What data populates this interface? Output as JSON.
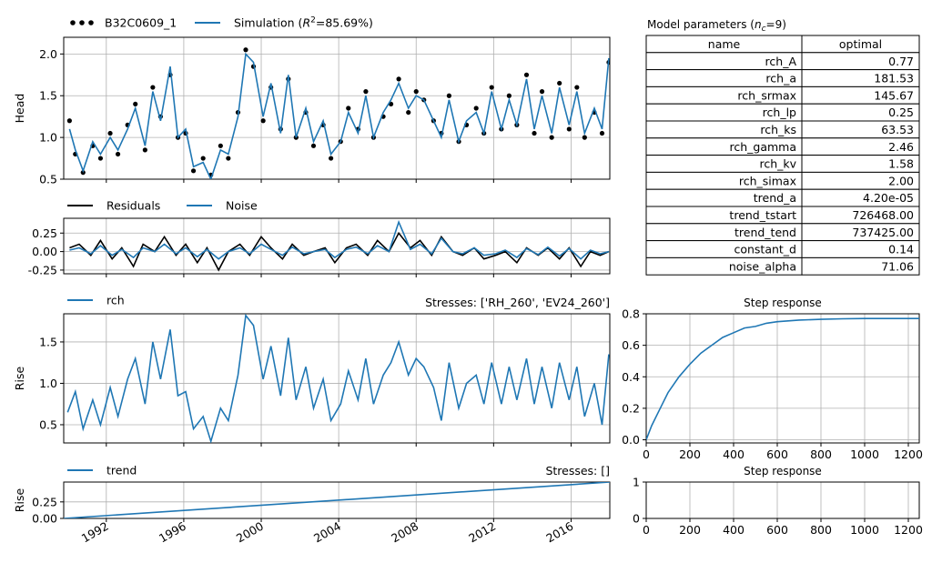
{
  "chart_data": [
    {
      "id": "head",
      "type": "line",
      "ylabel": "Head",
      "ylim": [
        0.5,
        2.2
      ],
      "yticks": [
        "0.5",
        "1.0",
        "1.5",
        "2.0"
      ],
      "xlim": [
        1989.8,
        2018.0
      ],
      "grid": true,
      "legend": "top-left",
      "legend_entries": [
        {
          "label": "B32C0609_1",
          "style": "dots",
          "color": "#000000"
        },
        {
          "label_prefix": "Simulation (",
          "label_r": "R",
          "label_sup": "2",
          "label_suffix": "=85.69%)",
          "style": "line",
          "color": "#1f77b4"
        }
      ],
      "series": [
        {
          "name": "B32C0609_1",
          "marker": "dot",
          "color": "#000000",
          "x": [
            1990.1,
            1990.4,
            1990.8,
            1991.3,
            1991.7,
            1992.2,
            1992.6,
            1993.1,
            1993.5,
            1994.0,
            1994.4,
            1994.8,
            1995.3,
            1995.7,
            1996.1,
            1996.5,
            1997.0,
            1997.4,
            1997.9,
            1998.3,
            1998.8,
            1999.2,
            1999.6,
            2000.1,
            2000.5,
            2001.0,
            2001.4,
            2001.8,
            2002.3,
            2002.7,
            2003.2,
            2003.6,
            2004.1,
            2004.5,
            2005.0,
            2005.4,
            2005.8,
            2006.3,
            2006.7,
            2007.1,
            2007.6,
            2008.0,
            2008.4,
            2008.9,
            2009.3,
            2009.7,
            2010.2,
            2010.6,
            2011.1,
            2011.5,
            2011.9,
            2012.4,
            2012.8,
            2013.2,
            2013.7,
            2014.1,
            2014.5,
            2015.0,
            2015.4,
            2015.9,
            2016.3,
            2016.7,
            2017.2,
            2017.6,
            2017.95
          ],
          "values": [
            1.2,
            0.8,
            0.58,
            0.9,
            0.75,
            1.05,
            0.8,
            1.15,
            1.4,
            0.85,
            1.6,
            1.25,
            1.75,
            1.0,
            1.05,
            0.6,
            0.75,
            0.55,
            0.9,
            0.75,
            1.3,
            2.05,
            1.85,
            1.2,
            1.6,
            1.1,
            1.7,
            1.0,
            1.3,
            0.9,
            1.15,
            0.75,
            0.95,
            1.35,
            1.1,
            1.55,
            1.0,
            1.25,
            1.4,
            1.7,
            1.3,
            1.55,
            1.45,
            1.2,
            1.05,
            1.5,
            0.95,
            1.15,
            1.35,
            1.05,
            1.6,
            1.1,
            1.5,
            1.15,
            1.75,
            1.05,
            1.55,
            1.0,
            1.65,
            1.1,
            1.6,
            1.0,
            1.3,
            1.05,
            1.9
          ]
        },
        {
          "name": "Simulation",
          "color": "#1f77b4",
          "x": [
            1990.1,
            1990.4,
            1990.8,
            1991.3,
            1991.7,
            1992.2,
            1992.6,
            1993.1,
            1993.5,
            1994.0,
            1994.4,
            1994.8,
            1995.3,
            1995.7,
            1996.1,
            1996.5,
            1997.0,
            1997.4,
            1997.9,
            1998.3,
            1998.8,
            1999.2,
            1999.6,
            2000.1,
            2000.5,
            2001.0,
            2001.4,
            2001.8,
            2002.3,
            2002.7,
            2003.2,
            2003.6,
            2004.1,
            2004.5,
            2005.0,
            2005.4,
            2005.8,
            2006.3,
            2006.7,
            2007.1,
            2007.6,
            2008.0,
            2008.4,
            2008.9,
            2009.3,
            2009.7,
            2010.2,
            2010.6,
            2011.1,
            2011.5,
            2011.9,
            2012.4,
            2012.8,
            2013.2,
            2013.7,
            2014.1,
            2014.5,
            2015.0,
            2015.4,
            2015.9,
            2016.3,
            2016.7,
            2017.2,
            2017.6,
            2017.95
          ],
          "values": [
            1.1,
            0.85,
            0.6,
            0.95,
            0.8,
            1.0,
            0.85,
            1.1,
            1.35,
            0.9,
            1.55,
            1.2,
            1.85,
            1.0,
            1.1,
            0.65,
            0.7,
            0.5,
            0.85,
            0.8,
            1.25,
            2.0,
            1.9,
            1.25,
            1.65,
            1.05,
            1.75,
            1.0,
            1.35,
            0.95,
            1.2,
            0.8,
            0.95,
            1.3,
            1.05,
            1.5,
            1.0,
            1.3,
            1.45,
            1.65,
            1.35,
            1.5,
            1.45,
            1.2,
            1.0,
            1.45,
            0.95,
            1.2,
            1.3,
            1.05,
            1.55,
            1.1,
            1.45,
            1.15,
            1.7,
            1.1,
            1.5,
            1.05,
            1.6,
            1.15,
            1.55,
            1.05,
            1.35,
            1.1,
            1.95
          ]
        }
      ]
    },
    {
      "id": "residuals",
      "type": "line",
      "ylim": [
        -0.3,
        0.45
      ],
      "yticks": [
        "0.25",
        "0.00",
        "-0.25"
      ],
      "xlim": [
        1989.8,
        2018.0
      ],
      "grid": true,
      "legend": "top-left",
      "series": [
        {
          "name": "Residuals",
          "color": "#000000",
          "x": [
            1990.1,
            1990.6,
            1991.2,
            1991.7,
            1992.3,
            1992.8,
            1993.4,
            1993.9,
            1994.5,
            1995.0,
            1995.6,
            1996.1,
            1996.7,
            1997.2,
            1997.8,
            1998.3,
            1998.9,
            1999.4,
            2000.0,
            2000.5,
            2001.1,
            2001.6,
            2002.2,
            2002.7,
            2003.3,
            2003.8,
            2004.4,
            2004.9,
            2005.5,
            2006.0,
            2006.6,
            2007.1,
            2007.7,
            2008.2,
            2008.8,
            2009.3,
            2009.9,
            2010.4,
            2011.0,
            2011.5,
            2012.1,
            2012.6,
            2013.2,
            2013.7,
            2014.3,
            2014.8,
            2015.4,
            2015.9,
            2016.5,
            2017.0,
            2017.5,
            2017.95
          ],
          "values": [
            0.05,
            0.1,
            -0.05,
            0.15,
            -0.1,
            0.05,
            -0.2,
            0.1,
            0.0,
            0.2,
            -0.05,
            0.1,
            -0.15,
            0.05,
            -0.25,
            0.0,
            0.1,
            -0.05,
            0.2,
            0.05,
            -0.1,
            0.1,
            -0.05,
            0.0,
            0.05,
            -0.15,
            0.05,
            0.1,
            -0.05,
            0.15,
            0.0,
            0.25,
            0.05,
            0.15,
            -0.05,
            0.2,
            0.0,
            -0.05,
            0.05,
            -0.1,
            -0.05,
            0.0,
            -0.15,
            0.05,
            -0.05,
            0.05,
            -0.1,
            0.05,
            -0.2,
            0.0,
            -0.05,
            0.0
          ]
        },
        {
          "name": "Noise",
          "color": "#1f77b4",
          "x": [
            1990.1,
            1990.6,
            1991.2,
            1991.7,
            1992.3,
            1992.8,
            1993.4,
            1993.9,
            1994.5,
            1995.0,
            1995.6,
            1996.1,
            1996.7,
            1997.2,
            1997.8,
            1998.3,
            1998.9,
            1999.4,
            2000.0,
            2000.5,
            2001.1,
            2001.6,
            2002.2,
            2002.7,
            2003.3,
            2003.8,
            2004.4,
            2004.9,
            2005.5,
            2006.0,
            2006.6,
            2007.1,
            2007.7,
            2008.2,
            2008.8,
            2009.3,
            2009.9,
            2010.4,
            2011.0,
            2011.5,
            2012.1,
            2012.6,
            2013.2,
            2013.7,
            2014.3,
            2014.8,
            2015.4,
            2015.9,
            2016.5,
            2017.0,
            2017.5,
            2017.95
          ],
          "values": [
            0.02,
            0.05,
            -0.03,
            0.08,
            -0.05,
            0.03,
            -0.08,
            0.05,
            0.0,
            0.1,
            -0.03,
            0.05,
            -0.07,
            0.03,
            -0.1,
            0.0,
            0.05,
            -0.03,
            0.1,
            0.03,
            -0.05,
            0.06,
            -0.03,
            0.0,
            0.03,
            -0.08,
            0.03,
            0.06,
            -0.03,
            0.08,
            0.0,
            0.4,
            0.03,
            0.1,
            -0.03,
            0.18,
            0.0,
            -0.03,
            0.05,
            -0.05,
            -0.03,
            0.02,
            -0.08,
            0.04,
            -0.04,
            0.06,
            -0.06,
            0.04,
            -0.1,
            0.02,
            -0.03,
            0.0
          ]
        }
      ]
    },
    {
      "id": "rch",
      "type": "line",
      "ylabel": "Rise",
      "ylim": [
        0.28,
        1.84
      ],
      "yticks": [
        "0.5",
        "1.0",
        "1.5"
      ],
      "xlim": [
        1989.8,
        2018.0
      ],
      "grid": true,
      "legend": "top-left",
      "annotation": "Stresses: ['RH_260', 'EV24_260']",
      "series": [
        {
          "name": "rch",
          "color": "#1f77b4",
          "x": [
            1990.0,
            1990.4,
            1990.8,
            1991.3,
            1991.7,
            1992.2,
            1992.6,
            1993.1,
            1993.5,
            1994.0,
            1994.4,
            1994.8,
            1995.3,
            1995.7,
            1996.1,
            1996.5,
            1997.0,
            1997.4,
            1997.9,
            1998.3,
            1998.8,
            1999.2,
            1999.6,
            2000.1,
            2000.5,
            2001.0,
            2001.4,
            2001.8,
            2002.3,
            2002.7,
            2003.2,
            2003.6,
            2004.1,
            2004.5,
            2005.0,
            2005.4,
            2005.8,
            2006.3,
            2006.7,
            2007.1,
            2007.6,
            2008.0,
            2008.4,
            2008.9,
            2009.3,
            2009.7,
            2010.2,
            2010.6,
            2011.1,
            2011.5,
            2011.9,
            2012.4,
            2012.8,
            2013.2,
            2013.7,
            2014.1,
            2014.5,
            2015.0,
            2015.4,
            2015.9,
            2016.3,
            2016.7,
            2017.2,
            2017.6,
            2017.95
          ],
          "values": [
            0.65,
            0.9,
            0.45,
            0.8,
            0.5,
            0.95,
            0.6,
            1.05,
            1.3,
            0.75,
            1.5,
            1.05,
            1.65,
            0.85,
            0.9,
            0.45,
            0.6,
            0.3,
            0.7,
            0.55,
            1.1,
            1.82,
            1.7,
            1.05,
            1.45,
            0.85,
            1.55,
            0.8,
            1.2,
            0.7,
            1.05,
            0.55,
            0.75,
            1.15,
            0.8,
            1.3,
            0.75,
            1.1,
            1.25,
            1.5,
            1.1,
            1.3,
            1.2,
            0.95,
            0.55,
            1.25,
            0.7,
            1.0,
            1.1,
            0.75,
            1.25,
            0.75,
            1.2,
            0.8,
            1.3,
            0.75,
            1.2,
            0.7,
            1.25,
            0.8,
            1.2,
            0.6,
            1.0,
            0.5,
            1.35
          ]
        }
      ]
    },
    {
      "id": "rch_step",
      "type": "line",
      "title": "Step response",
      "ylim": [
        -0.02,
        0.8
      ],
      "yticks": [
        "0.0",
        "0.2",
        "0.4",
        "0.6",
        "0.8"
      ],
      "xlim": [
        0,
        1250
      ],
      "xticks": [
        "0",
        "200",
        "400",
        "600",
        "800",
        "1000",
        "1200"
      ],
      "grid": true,
      "series": [
        {
          "name": "",
          "color": "#1f77b4",
          "x": [
            0,
            25,
            50,
            75,
            100,
            150,
            200,
            250,
            300,
            350,
            400,
            450,
            500,
            550,
            600,
            700,
            800,
            900,
            1000,
            1100,
            1250
          ],
          "values": [
            0.0,
            0.09,
            0.16,
            0.23,
            0.3,
            0.4,
            0.48,
            0.55,
            0.6,
            0.65,
            0.68,
            0.71,
            0.72,
            0.74,
            0.75,
            0.76,
            0.765,
            0.768,
            0.77,
            0.77,
            0.77
          ]
        }
      ]
    },
    {
      "id": "trend",
      "type": "line",
      "ylabel": "Rise",
      "ylim": [
        0.0,
        0.55
      ],
      "yticks": [
        "0.25",
        "0.00"
      ],
      "xlim": [
        1989.8,
        2018.0
      ],
      "xticks": [
        "1992",
        "1996",
        "2000",
        "2004",
        "2008",
        "2012",
        "2016"
      ],
      "grid": true,
      "legend": "top-left",
      "annotation": "Stresses: []",
      "series": [
        {
          "name": "trend",
          "color": "#1f77b4",
          "x": [
            1989.8,
            2018.0
          ],
          "values": [
            0.0,
            0.55
          ]
        }
      ]
    },
    {
      "id": "trend_step",
      "type": "line",
      "title": "Step response",
      "ylim": [
        0,
        1
      ],
      "yticks": [
        "0",
        "1"
      ],
      "xlim": [
        0,
        1250
      ],
      "xticks": [
        "0",
        "200",
        "400",
        "600",
        "800",
        "1000",
        "1200"
      ],
      "grid": true,
      "series": []
    },
    {
      "id": "params",
      "type": "table",
      "title_prefix": "Model parameters (",
      "title_n": "n",
      "title_sub": "c",
      "title_suffix": "=9)",
      "columns": [
        "name",
        "optimal"
      ],
      "rows": [
        [
          "rch_A",
          "0.77"
        ],
        [
          "rch_a",
          "181.53"
        ],
        [
          "rch_srmax",
          "145.67"
        ],
        [
          "rch_lp",
          "0.25"
        ],
        [
          "rch_ks",
          "63.53"
        ],
        [
          "rch_gamma",
          "2.46"
        ],
        [
          "rch_kv",
          "1.58"
        ],
        [
          "rch_simax",
          "2.00"
        ],
        [
          "trend_a",
          "4.20e-05"
        ],
        [
          "trend_tstart",
          "726468.00"
        ],
        [
          "trend_tend",
          "737425.00"
        ],
        [
          "constant_d",
          "0.14"
        ],
        [
          "noise_alpha",
          "71.06"
        ]
      ]
    }
  ]
}
